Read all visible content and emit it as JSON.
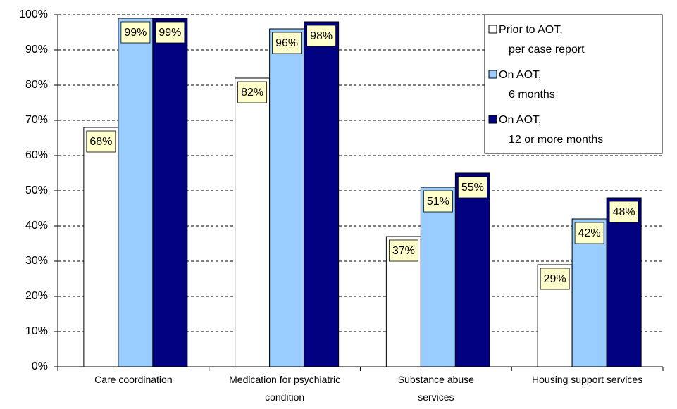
{
  "chart_data": {
    "type": "bar",
    "categories": [
      "Care coordination",
      "Medication for psychiatric\ncondition",
      "Substance abuse\nservices",
      "Housing support services"
    ],
    "series": [
      {
        "name": "Prior to AOT,\nper case report",
        "color": "#ffffff",
        "values": [
          68,
          82,
          37,
          29
        ],
        "value_labels": [
          "68%",
          "82%",
          "37%",
          "29%"
        ]
      },
      {
        "name": "On AOT,\n6 months",
        "color": "#99ccff",
        "values": [
          99,
          96,
          51,
          42
        ],
        "value_labels": [
          "99%",
          "96%",
          "51%",
          "42%"
        ]
      },
      {
        "name": "On AOT,\n12 or more months",
        "color": "#000080",
        "values": [
          99,
          98,
          55,
          48
        ],
        "value_labels": [
          "99%",
          "98%",
          "55%",
          "48%"
        ]
      }
    ],
    "ylim": [
      0,
      100
    ],
    "yticks": [
      {
        "value": 0,
        "label": "0%"
      },
      {
        "value": 10,
        "label": "10%"
      },
      {
        "value": 20,
        "label": "20%"
      },
      {
        "value": 30,
        "label": "30%"
      },
      {
        "value": 40,
        "label": "40%"
      },
      {
        "value": 50,
        "label": "50%"
      },
      {
        "value": 60,
        "label": "60%"
      },
      {
        "value": 70,
        "label": "70%"
      },
      {
        "value": 80,
        "label": "80%"
      },
      {
        "value": 90,
        "label": "90%"
      },
      {
        "value": 100,
        "label": "100%"
      }
    ],
    "grid": true,
    "legend": "upper right"
  }
}
